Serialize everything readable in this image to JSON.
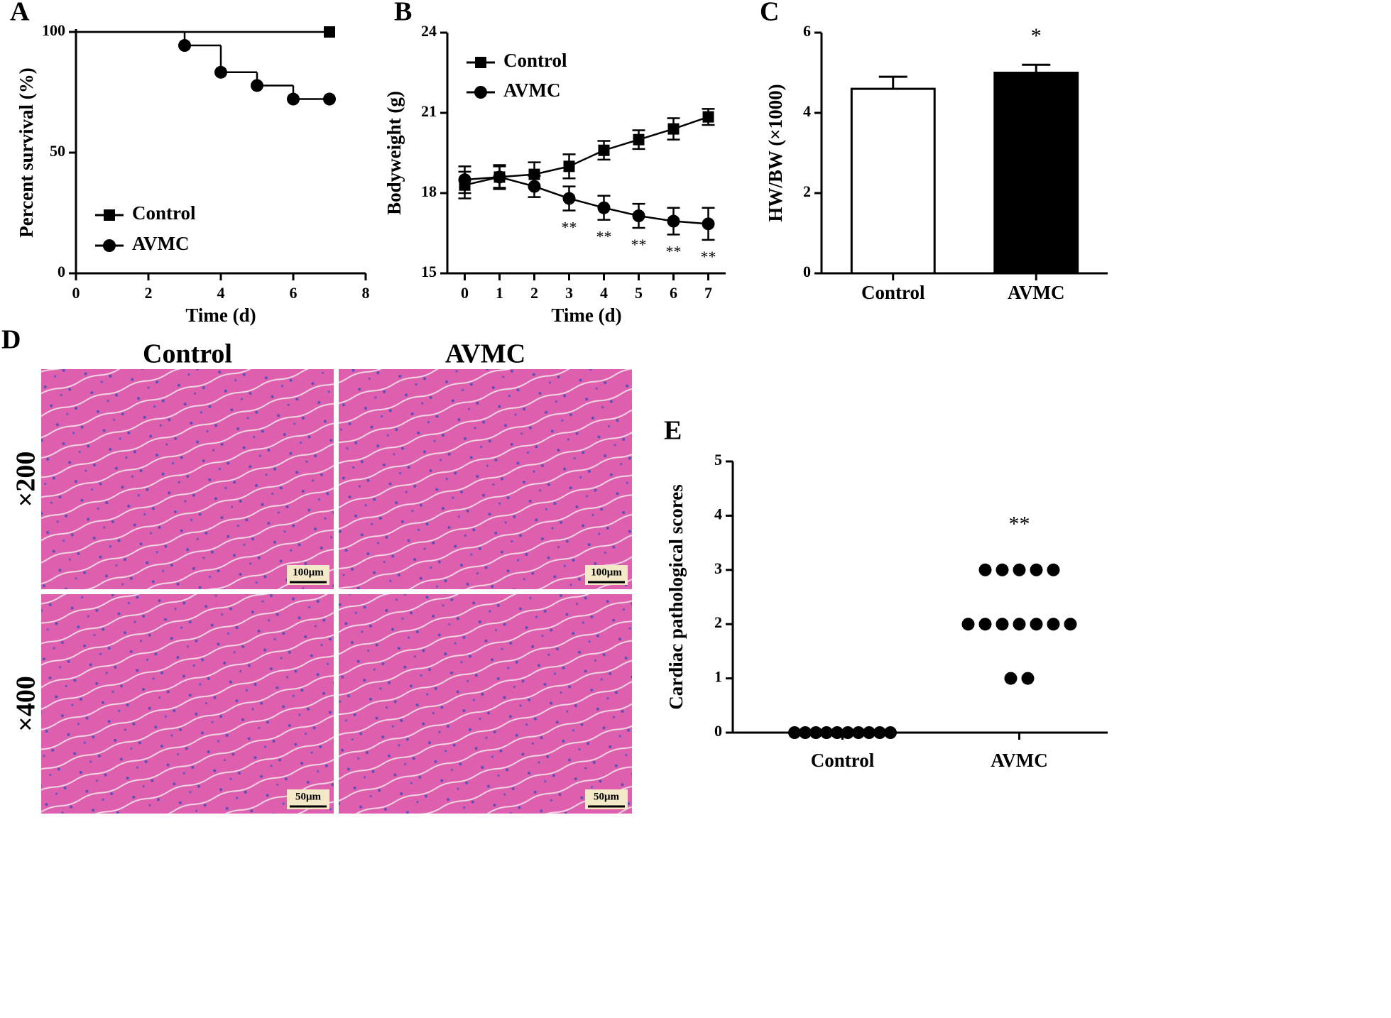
{
  "chart_data": [
    {
      "panel": "A",
      "type": "step",
      "xlabel": "Time (d)",
      "ylabel": "Percent survival (%)",
      "xlim": [
        0,
        8
      ],
      "xticks": [
        0,
        2,
        4,
        6,
        8
      ],
      "ylim": [
        0,
        100
      ],
      "yticks": [
        0,
        50,
        100
      ],
      "legend": "lower left",
      "series": [
        {
          "name": "Control",
          "color": "#000000",
          "marker": "square",
          "x": [
            0,
            7
          ],
          "values": [
            100,
            100
          ]
        },
        {
          "name": "AVMC",
          "color": "#000000",
          "marker": "circle",
          "x": [
            0,
            3,
            4,
            5,
            6,
            7
          ],
          "values": [
            100,
            94.4,
            83.3,
            77.8,
            72.2,
            72.2
          ]
        }
      ]
    },
    {
      "panel": "B",
      "type": "line",
      "xlabel": "Time (d)",
      "ylabel": "Bodyweight (g)",
      "xlim": [
        -0.5,
        7.5
      ],
      "xticks": [
        0,
        1,
        2,
        3,
        4,
        5,
        6,
        7
      ],
      "ylim": [
        15,
        24
      ],
      "yticks": [
        15,
        18,
        21,
        24
      ],
      "legend": "upper left",
      "x": [
        0,
        1,
        2,
        3,
        4,
        5,
        6,
        7
      ],
      "series": [
        {
          "name": "Control",
          "color": "#000000",
          "marker": "square",
          "values": [
            18.3,
            18.6,
            18.7,
            19.0,
            19.6,
            20.0,
            20.4,
            20.85
          ],
          "errors": [
            0.5,
            0.4,
            0.45,
            0.45,
            0.35,
            0.35,
            0.4,
            0.3
          ]
        },
        {
          "name": "AVMC",
          "color": "#000000",
          "marker": "circle",
          "values": [
            18.5,
            18.6,
            18.25,
            17.8,
            17.45,
            17.15,
            16.95,
            16.85
          ],
          "errors": [
            0.5,
            0.45,
            0.4,
            0.45,
            0.45,
            0.45,
            0.5,
            0.6
          ],
          "significance": [
            null,
            null,
            null,
            "**",
            "**",
            "**",
            "**",
            "**"
          ]
        }
      ]
    },
    {
      "panel": "C",
      "type": "bar",
      "ylabel": "HW/BW (×1000)",
      "categories": [
        "Control",
        "AVMC"
      ],
      "values": [
        4.6,
        5.0
      ],
      "errors": [
        0.3,
        0.2
      ],
      "colors": [
        "#ffffff",
        "#000000"
      ],
      "significance": [
        null,
        "*"
      ],
      "ylim": [
        0,
        6
      ],
      "yticks": [
        0,
        2,
        4,
        6
      ]
    },
    {
      "panel": "E",
      "type": "dot",
      "ylabel": "Cardiac pathological scores",
      "categories": [
        "Control",
        "AVMC"
      ],
      "points": [
        [
          0,
          0,
          0,
          0,
          0,
          0,
          0,
          0,
          0,
          0
        ],
        [
          3,
          3,
          3,
          3,
          3,
          2,
          2,
          2,
          2,
          2,
          2,
          2,
          1,
          1
        ]
      ],
      "significance": [
        null,
        "**"
      ],
      "color": "#000000",
      "ylim": [
        0,
        5
      ],
      "yticks": [
        0,
        1,
        2,
        3,
        4,
        5
      ]
    }
  ],
  "panel_d": {
    "panel": "D",
    "columns": [
      "Control",
      "AVMC"
    ],
    "rows": [
      "×200",
      "×400"
    ],
    "scale_bars": [
      "100μm",
      "50μm"
    ]
  }
}
